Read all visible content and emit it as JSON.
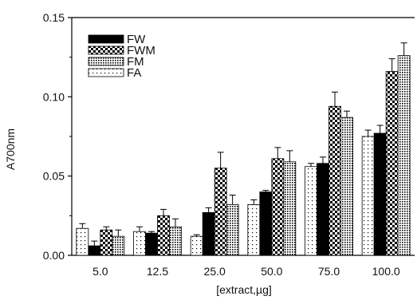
{
  "chart_data": {
    "type": "bar",
    "title": "",
    "xlabel": "[extract,µg]",
    "ylabel": "A700nm",
    "categories": [
      "5.0",
      "12.5",
      "25.0",
      "50.0",
      "75.0",
      "100.0"
    ],
    "ylim": [
      0,
      0.15
    ],
    "yticks": [
      "0.00",
      "0.05",
      "0.10",
      "0.15"
    ],
    "legend_position": "top-left",
    "series": [
      {
        "name": "FA",
        "pattern": "dots",
        "values": [
          0.017,
          0.015,
          0.012,
          0.032,
          0.056,
          0.075
        ],
        "errors": [
          0.003,
          0.003,
          0.001,
          0.003,
          0.002,
          0.004
        ]
      },
      {
        "name": "FW",
        "pattern": "solid",
        "values": [
          0.006,
          0.014,
          0.027,
          0.04,
          0.058,
          0.077
        ],
        "errors": [
          0.003,
          0.001,
          0.003,
          0.001,
          0.004,
          0.005
        ]
      },
      {
        "name": "FWM",
        "pattern": "checker",
        "values": [
          0.016,
          0.025,
          0.055,
          0.061,
          0.094,
          0.116
        ],
        "errors": [
          0.002,
          0.004,
          0.01,
          0.007,
          0.009,
          0.008
        ]
      },
      {
        "name": "FM",
        "pattern": "dense-dots",
        "values": [
          0.012,
          0.018,
          0.032,
          0.059,
          0.087,
          0.126
        ],
        "errors": [
          0.004,
          0.005,
          0.006,
          0.007,
          0.004,
          0.008
        ]
      }
    ],
    "legend_order": [
      "FW",
      "FWM",
      "FM",
      "FA"
    ],
    "error_bars": true,
    "grid": false
  }
}
